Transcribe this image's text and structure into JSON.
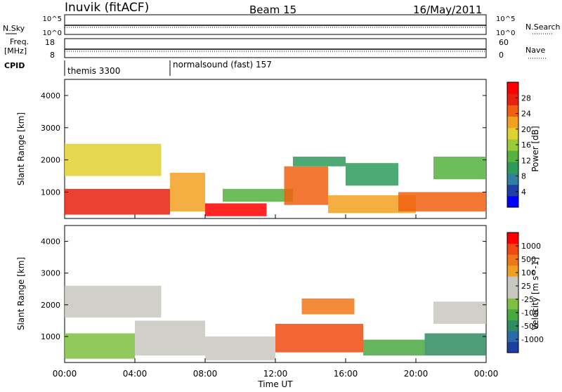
{
  "header": {
    "station": "Inuvik (fitACF)",
    "beam": "Beam 15",
    "date": "16/May/2011"
  },
  "noise_panel": {
    "left_label": "N.Sky",
    "right_label": "N.Search",
    "left_ticks": [
      "10^5",
      "10^0"
    ],
    "right_ticks": [
      "10^5",
      "10^0"
    ]
  },
  "freq_panel": {
    "left_label": "Freq.",
    "left_unit": "[MHz]",
    "right_label": "Nave",
    "left_ticks": [
      "18",
      "8"
    ],
    "right_ticks": [
      "60",
      "0"
    ]
  },
  "cpid": {
    "label": "CPID",
    "modes": [
      {
        "name": "themis 3300",
        "start_hour": 0,
        "end_hour": 6
      },
      {
        "name": "normalsound (fast) 157",
        "start_hour": 6,
        "end_hour": 24
      }
    ]
  },
  "x_axis": {
    "label": "Time UT",
    "ticks": [
      "00:00",
      "04:00",
      "08:00",
      "12:00",
      "16:00",
      "20:00",
      "00:00"
    ]
  },
  "power_colorbar": {
    "label": "Power [dB]",
    "ticks": [
      "28",
      "24",
      "20",
      "16",
      "12",
      "8",
      "4"
    ],
    "colors": [
      "#0000ff",
      "#1f3fa8",
      "#2e7fa0",
      "#2e9b5a",
      "#55b140",
      "#9ccb3a",
      "#e0d030",
      "#f3a020",
      "#f06010",
      "#e82010",
      "#ff0000"
    ]
  },
  "velocity_colorbar": {
    "label": "Velocity [m s^-1]",
    "ticks": [
      "1000",
      "500",
      "100",
      "25",
      "-25",
      "-100",
      "-500",
      "-1000"
    ],
    "colors": [
      "#1a3fa0",
      "#2b6aa8",
      "#2e8c60",
      "#4aa840",
      "#7fc040",
      "#c8c8c0",
      "#c8c8c0",
      "#f0a020",
      "#f07818",
      "#f04a10",
      "#ff0000"
    ]
  },
  "chart_data": [
    {
      "type": "heatmap",
      "title": "Power",
      "xlabel": "Time UT",
      "ylabel": "Slant Range [km]",
      "xlim": [
        0,
        24
      ],
      "ylim": [
        180,
        4500
      ],
      "yticks": [
        1000,
        2000,
        3000,
        4000
      ],
      "ytick_labels": [
        "1000",
        "2000",
        "3000",
        "4000"
      ],
      "colorbar_label": "Power [dB]",
      "colorbar_range": [
        0,
        30
      ],
      "regions": [
        {
          "t0": 0.0,
          "t1": 6.0,
          "r0": 300,
          "r1": 1100,
          "value": 27
        },
        {
          "t0": 0.0,
          "t1": 5.5,
          "r0": 1500,
          "r1": 2500,
          "value": 17
        },
        {
          "t0": 6.0,
          "t1": 8.0,
          "r0": 400,
          "r1": 1600,
          "value": 20
        },
        {
          "t0": 8.0,
          "t1": 11.5,
          "r0": 250,
          "r1": 650,
          "value": 29
        },
        {
          "t0": 9.0,
          "t1": 13.0,
          "r0": 700,
          "r1": 1100,
          "value": 12
        },
        {
          "t0": 12.5,
          "t1": 15.0,
          "r0": 600,
          "r1": 1800,
          "value": 24
        },
        {
          "t0": 13.0,
          "t1": 16.0,
          "r0": 1800,
          "r1": 2100,
          "value": 8
        },
        {
          "t0": 15.0,
          "t1": 20.0,
          "r0": 350,
          "r1": 900,
          "value": 22
        },
        {
          "t0": 16.0,
          "t1": 19.0,
          "r0": 1200,
          "r1": 1900,
          "value": 10
        },
        {
          "t0": 19.0,
          "t1": 24.0,
          "r0": 400,
          "r1": 1000,
          "value": 24
        },
        {
          "t0": 21.0,
          "t1": 24.0,
          "r0": 1400,
          "r1": 2100,
          "value": 12
        }
      ]
    },
    {
      "type": "heatmap",
      "title": "Velocity",
      "xlabel": "Time UT",
      "ylabel": "Slant Range [km]",
      "xlim": [
        0,
        24
      ],
      "ylim": [
        180,
        4500
      ],
      "yticks": [
        1000,
        2000,
        3000,
        4000
      ],
      "ytick_labels": [
        "1000",
        "2000",
        "3000",
        "4000"
      ],
      "colorbar_label": "Velocity [m s^-1]",
      "colorbar_range": [
        -1000,
        1000
      ],
      "regions": [
        {
          "t0": 0.0,
          "t1": 5.5,
          "r0": 1600,
          "r1": 2600,
          "value": 0
        },
        {
          "t0": 0.0,
          "t1": 4.0,
          "r0": 300,
          "r1": 1100,
          "value": -300
        },
        {
          "t0": 4.0,
          "t1": 8.0,
          "r0": 400,
          "r1": 1500,
          "value": 100
        },
        {
          "t0": 8.0,
          "t1": 12.0,
          "r0": 250,
          "r1": 700,
          "value": 100
        },
        {
          "t0": 8.0,
          "t1": 12.0,
          "r0": 700,
          "r1": 1000,
          "value": 0
        },
        {
          "t0": 12.0,
          "t1": 17.0,
          "r0": 500,
          "r1": 1400,
          "value": 700
        },
        {
          "t0": 13.5,
          "t1": 16.5,
          "r0": 1700,
          "r1": 2200,
          "value": 600
        },
        {
          "t0": 17.0,
          "t1": 20.5,
          "r0": 400,
          "r1": 900,
          "value": -400
        },
        {
          "t0": 20.5,
          "t1": 24.0,
          "r0": 400,
          "r1": 1100,
          "value": -600
        },
        {
          "t0": 21.0,
          "t1": 24.0,
          "r0": 1400,
          "r1": 2100,
          "value": -80
        }
      ]
    }
  ]
}
